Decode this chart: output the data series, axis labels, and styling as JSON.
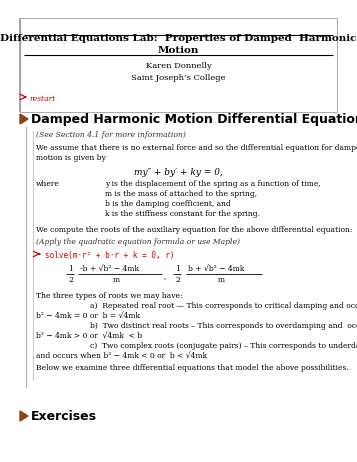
{
  "bg_color": "#ffffff",
  "title_line1": "Differential Equations Lab:  Properties of Damped  Harmonic",
  "title_line2": "Motion",
  "author": "Karen Donnelly",
  "institution": "Saint Joseph’s College",
  "restart_label": "restart",
  "section1_title": "Damped Harmonic Motion Differential Equation",
  "note": "(See Section 4.1 for more information)",
  "intro_line1": "We assume that there is no external force and so the differential equation for damped harmonic",
  "intro_line2": "motion is given by",
  "equation_main": "my″ + by′ + ky = 0,",
  "where_label": "where",
  "where_items": [
    "y is the displacement of the spring as a function of time,",
    "m is the mass of attached to the spring,",
    "b is the damping coefficient, and",
    "k is the stiffness constant for the spring."
  ],
  "roots_intro": "We compute the roots of the auxiliary equation for the above differential equation:",
  "quadratic_note": "(Apply the quadratic equation formula or use Maple)",
  "maple_cmd": "solve(m·r² + b·r + k = 0, r)",
  "three_types": "The three types of roots we may have:",
  "type_a_label": "a)  Repeated real root — This corresponds to critical damping and occurs when",
  "type_a_cond": "b² − 4mk = 0 or  b = √4mk",
  "type_b_label": "b)  Two distinct real roots – This corresponds to overdamping and  occurs when",
  "type_b_cond": "b² − 4mk > 0 or  √4mk  < b",
  "type_c_label": "c)  Two complex roots (conjugate pairs) – This corresponds to underdamping",
  "type_c_cond": "and occurs when b² − 4mk < 0 or  b < √4mk",
  "below_text": "Below we examine three differential equations that model the above possibilities.",
  "section2_title": "Exercises",
  "red_color": "#cc0000",
  "triangle_color": "#8B4513",
  "gray_line": "#999999"
}
